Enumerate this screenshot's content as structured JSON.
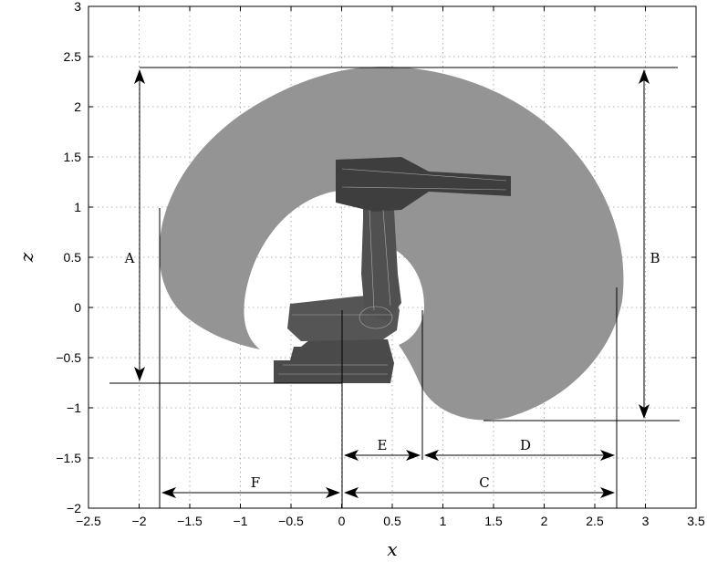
{
  "axes": {
    "xlabel": "x",
    "ylabel": "z",
    "xlim": [
      -2.5,
      3.5
    ],
    "ylim": [
      -2,
      3
    ],
    "xticks": [
      "−2.5",
      "−2",
      "−1.5",
      "−1",
      "−0.5",
      "0",
      "0.5",
      "1",
      "1.5",
      "2",
      "2.5",
      "3",
      "3.5"
    ],
    "yticks": [
      "−2",
      "−1.5",
      "−1",
      "−0.5",
      "0",
      "0.5",
      "1",
      "1.5",
      "2",
      "2.5",
      "3"
    ],
    "grid": true
  },
  "dimensions": {
    "A": "A",
    "B": "B",
    "C": "C",
    "D": "D",
    "E": "E",
    "F": "F"
  },
  "colors": {
    "workspace": "#949494",
    "robot": "#4a4a4a",
    "lines": "#000000"
  }
}
